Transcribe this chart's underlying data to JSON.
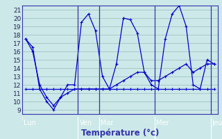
{
  "background_color": "#cce8e8",
  "plot_bg_color": "#cce8e8",
  "footer_color": "#3333aa",
  "grid_color": "#99bbbb",
  "line_color": "#0000cc",
  "spine_color": "#3333aa",
  "xlabel": "Température (°c)",
  "ylim": [
    8.5,
    21.5
  ],
  "yticks": [
    9,
    10,
    11,
    12,
    13,
    14,
    15,
    16,
    17,
    18,
    19,
    20,
    21
  ],
  "day_labels": [
    "Lun",
    "Ven",
    "Mar",
    "Mer",
    "Jeu"
  ],
  "day_x": [
    0,
    8,
    11,
    19,
    27
  ],
  "vline_x": [
    8,
    11,
    19,
    27
  ],
  "n_points": 28,
  "series1": [
    17.5,
    16.5,
    11.5,
    10.0,
    9.0,
    10.5,
    12.0,
    12.0,
    19.5,
    20.5,
    18.5,
    13.0,
    11.5,
    14.5,
    20.0,
    19.8,
    18.2,
    13.5,
    12.0,
    11.5,
    17.5,
    20.5,
    21.5,
    19.0,
    12.0,
    11.5,
    15.0,
    14.5
  ],
  "series2": [
    11.5,
    11.5,
    11.5,
    11.5,
    11.5,
    11.5,
    11.5,
    11.5,
    11.5,
    11.5,
    11.5,
    11.5,
    11.5,
    11.5,
    11.5,
    11.5,
    11.5,
    11.5,
    11.5,
    11.5,
    11.5,
    11.5,
    11.5,
    11.5,
    11.5,
    11.5,
    11.5,
    11.5
  ],
  "series3": [
    17.5,
    16.0,
    12.0,
    10.5,
    9.5,
    10.5,
    11.0,
    11.5,
    11.5,
    11.5,
    11.5,
    11.5,
    11.5,
    12.0,
    12.5,
    13.0,
    13.5,
    13.5,
    12.5,
    12.5,
    13.0,
    13.5,
    14.0,
    14.5,
    13.5,
    14.0,
    14.5,
    14.5
  ]
}
